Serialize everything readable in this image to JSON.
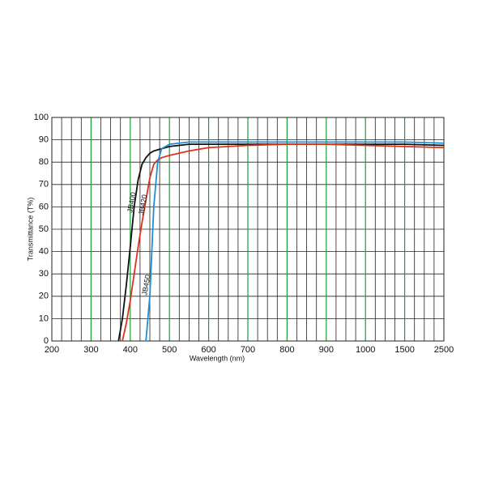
{
  "chart_data": {
    "type": "line",
    "x_label": "Wavelength (nm)",
    "y_label": "Transmittance (T%)",
    "x": [
      360,
      370,
      380,
      390,
      400,
      410,
      420,
      430,
      440,
      450,
      460,
      470,
      480,
      500,
      550,
      600,
      700,
      800,
      900,
      1000,
      1500,
      2500
    ],
    "series": [
      {
        "name": "JB400",
        "color": "#111111",
        "values": [
          null,
          0,
          10,
          25,
          42,
          60,
          72,
          79,
          82,
          84,
          85,
          85.5,
          86,
          87,
          88,
          88,
          88,
          88,
          88,
          88,
          88,
          87.5
        ]
      },
      {
        "name": "JB420",
        "color": "#e0301e",
        "values": [
          null,
          null,
          0,
          8,
          18,
          30,
          42,
          53,
          63,
          73,
          79,
          81,
          82,
          83,
          85,
          86.5,
          87.5,
          88,
          88,
          87.5,
          87,
          86.5
        ]
      },
      {
        "name": "JB450",
        "color": "#1e8fd6",
        "values": [
          null,
          null,
          null,
          null,
          null,
          null,
          null,
          null,
          0,
          20,
          60,
          80,
          86,
          88,
          89,
          89,
          89,
          89,
          89,
          89,
          89,
          88.5
        ]
      }
    ],
    "xticks": [
      200,
      300,
      400,
      500,
      600,
      700,
      800,
      900,
      1000,
      1500,
      2500
    ],
    "ylim": [
      0,
      100
    ],
    "yticks": [
      0,
      10,
      20,
      30,
      40,
      50,
      60,
      70,
      80,
      90,
      100
    ],
    "grid": true,
    "grid_color": "#1a9e3a"
  }
}
